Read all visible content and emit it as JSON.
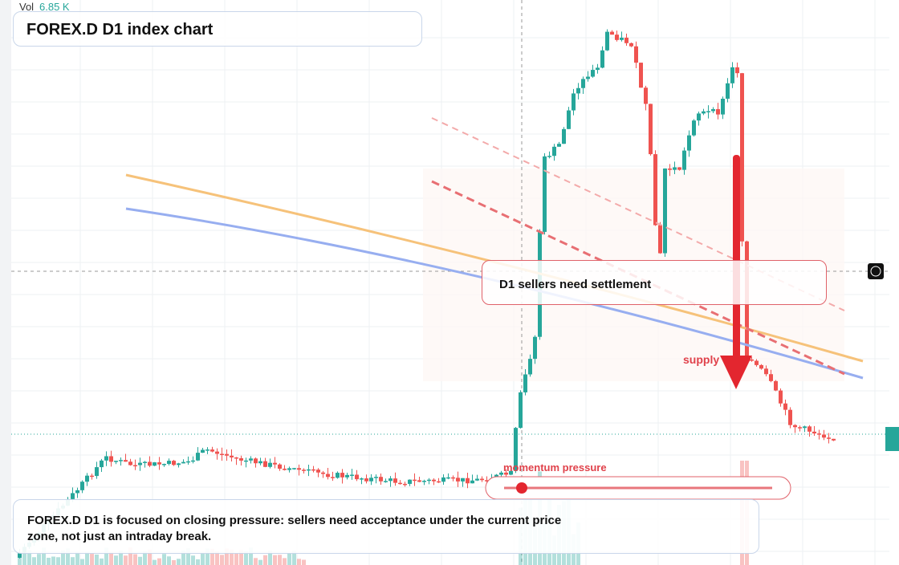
{
  "header": {
    "volume_label": "Vol",
    "volume_value": "6.85 K",
    "title": "FOREX.D D1 index chart"
  },
  "annotations": {
    "box": "D1 sellers need settlement",
    "supply": "supply",
    "momentum": "momentum pressure"
  },
  "summary": "FOREX.D D1 is focused on closing pressure: sellers need acceptance under the current price zone, not just an intraday break."
}
